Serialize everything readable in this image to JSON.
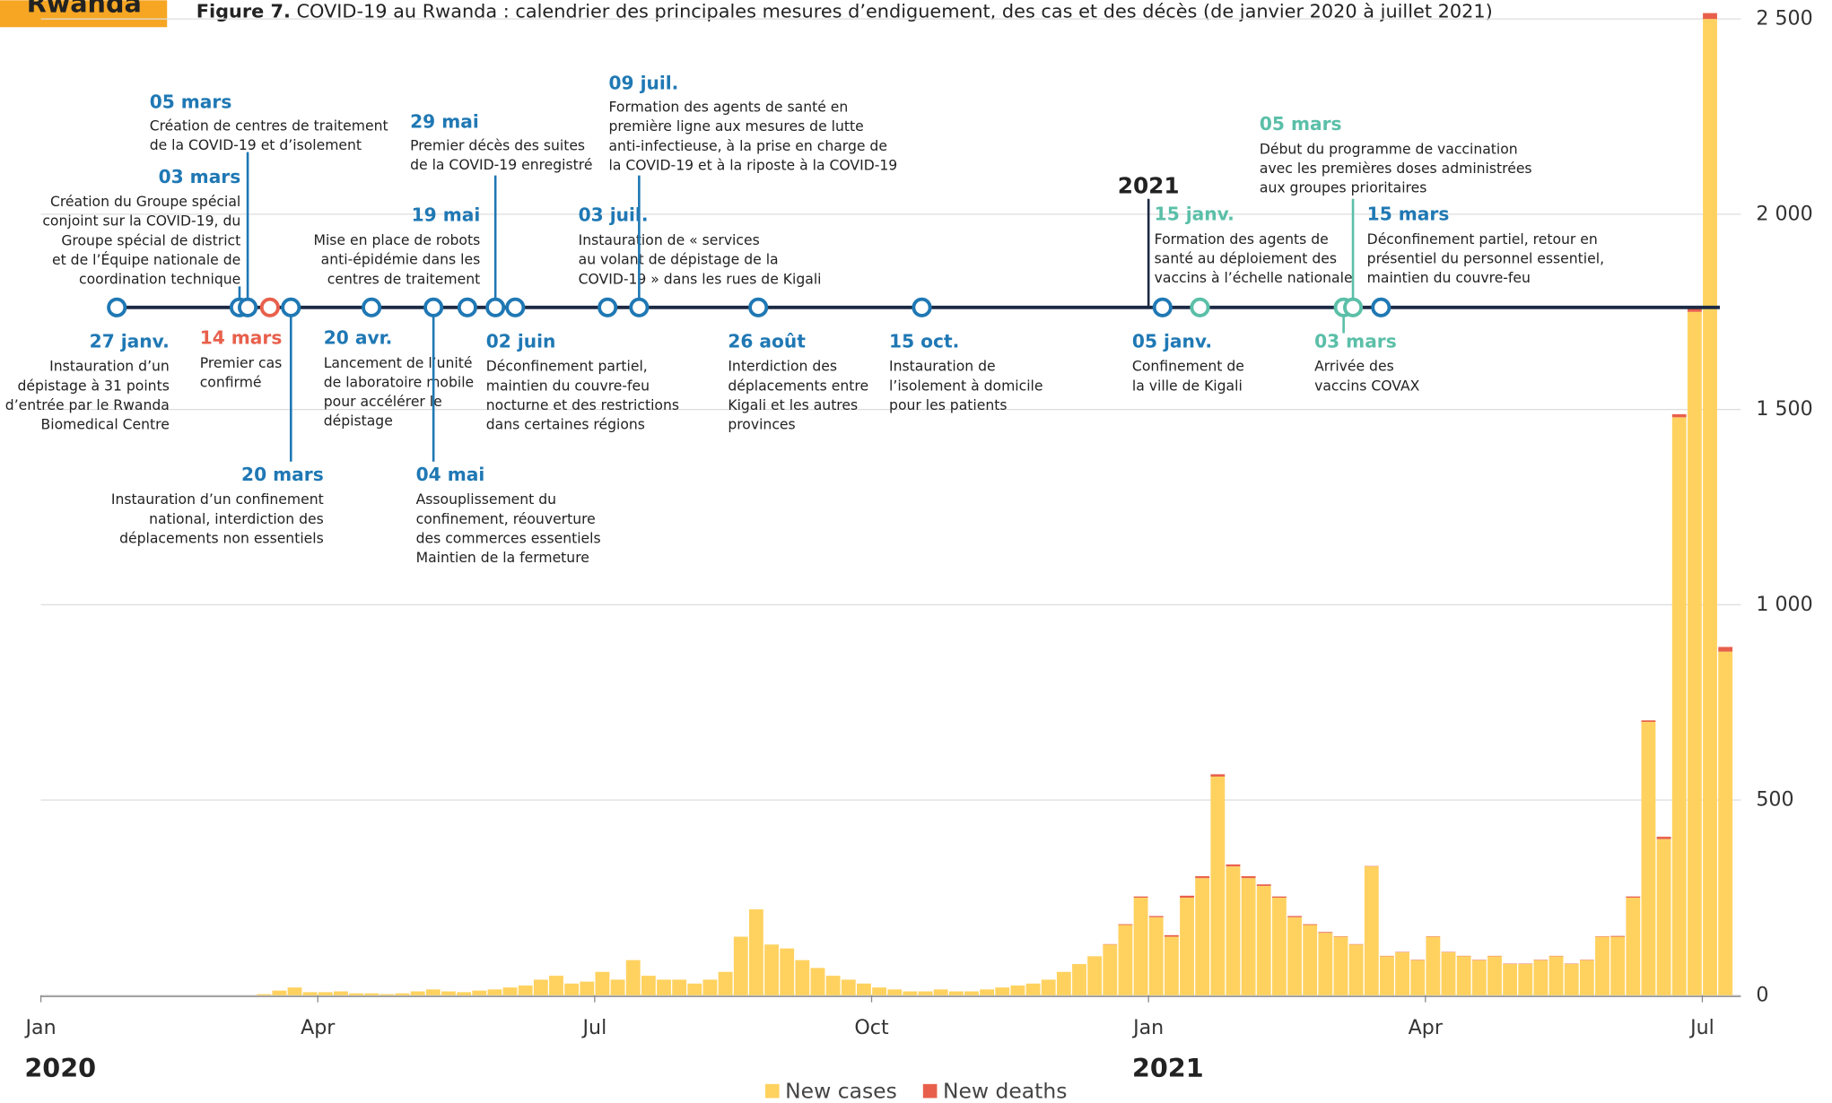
{
  "chart_data": {
    "type": "bar",
    "badge": "Rwanda",
    "figure_label": "Figure 7.",
    "title": "COVID-19 au Rwanda : calendrier des principales mesures d’endiguement, des cas et des décès (de janvier 2020 à juillet 2021)",
    "years": [
      "2020",
      "2021"
    ],
    "timeline_year": "2021",
    "categories": [
      "Jan",
      null,
      null,
      null,
      null,
      null,
      null,
      null,
      null,
      null,
      null,
      null,
      null,
      null,
      null,
      null,
      null,
      null,
      "Apr",
      null,
      null,
      null,
      null,
      null,
      null,
      null,
      null,
      null,
      null,
      null,
      null,
      null,
      null,
      null,
      null,
      null,
      "Jul",
      null,
      null,
      null,
      null,
      null,
      null,
      null,
      null,
      null,
      null,
      null,
      null,
      null,
      null,
      null,
      null,
      null,
      "Oct",
      null,
      null,
      null,
      null,
      null,
      null,
      null,
      null,
      null,
      null,
      null,
      null,
      null,
      null,
      null,
      null,
      null,
      "Jan",
      null,
      null,
      null,
      null,
      null,
      null,
      null,
      null,
      null,
      null,
      null,
      null,
      null,
      null,
      null,
      null,
      null,
      "Apr",
      null,
      null,
      null,
      null,
      null,
      null,
      null,
      null,
      null,
      null,
      null,
      null,
      null,
      null,
      null,
      null,
      null,
      "Jul",
      null
    ],
    "series": [
      {
        "name": "New cases",
        "color": "#ffd260",
        "values": [
          0,
          0,
          0,
          0,
          0,
          0,
          0,
          0,
          0,
          0,
          0,
          0,
          0,
          0,
          3,
          12,
          20,
          8,
          8,
          10,
          5,
          5,
          3,
          5,
          10,
          15,
          10,
          8,
          12,
          15,
          20,
          25,
          40,
          50,
          30,
          35,
          60,
          40,
          90,
          50,
          40,
          40,
          30,
          40,
          60,
          150,
          220,
          130,
          120,
          90,
          70,
          50,
          40,
          30,
          20,
          15,
          10,
          10,
          15,
          10,
          10,
          15,
          20,
          25,
          30,
          40,
          60,
          80,
          100,
          130,
          180,
          250,
          200,
          150,
          250,
          300,
          560,
          330,
          300,
          280,
          250,
          200,
          180,
          160,
          150,
          130,
          330,
          100,
          110,
          90,
          150,
          110,
          100,
          90,
          100,
          80,
          80,
          90,
          100,
          80,
          90,
          150,
          150,
          250,
          700,
          400,
          1480,
          1750,
          2500,
          880
        ]
      },
      {
        "name": "New deaths",
        "color": "#e8604c",
        "values": [
          0,
          0,
          0,
          0,
          0,
          0,
          0,
          0,
          0,
          0,
          0,
          0,
          0,
          0,
          0,
          0,
          0,
          0,
          0,
          0,
          0,
          0,
          0,
          0,
          0,
          0,
          0,
          0,
          0,
          0,
          0,
          0,
          0,
          0,
          0,
          0,
          0,
          0,
          0,
          0,
          0,
          0,
          0,
          0,
          0,
          0,
          0,
          0,
          0,
          0,
          0,
          0,
          0,
          0,
          0,
          0,
          0,
          0,
          0,
          0,
          0,
          0,
          0,
          0,
          0,
          0,
          0,
          0,
          0,
          1,
          2,
          3,
          3,
          4,
          5,
          5,
          6,
          5,
          5,
          4,
          3,
          3,
          2,
          2,
          1,
          1,
          1,
          1,
          1,
          1,
          1,
          1,
          1,
          1,
          1,
          1,
          1,
          1,
          1,
          1,
          1,
          1,
          2,
          3,
          4,
          6,
          8,
          10,
          15,
          12
        ]
      }
    ],
    "ylim": [
      0,
      2500
    ],
    "yticks": [
      0,
      500,
      {
        "value": 1000,
        "label": "1 000"
      },
      {
        "value": 1500,
        "label": "1 500"
      },
      {
        "value": 2000,
        "label": "2 000"
      },
      {
        "value": 2500,
        "label": "2 500"
      }
    ],
    "grid": true,
    "events": [
      {
        "date": "27 janv.",
        "color": "#1f78b4",
        "text": [
          "Instauration d’un",
          "dépistage à 31 points",
          "d’entrée par le Rwanda",
          "Biomedical Centre"
        ]
      },
      {
        "date": "03 mars",
        "color": "#1f78b4",
        "text": [
          "Création du Groupe spécial",
          "conjoint sur la COVID-19, du",
          "Groupe spécial de district",
          "et de l’Équipe nationale de",
          "coordination technique"
        ]
      },
      {
        "date": "05 mars",
        "color": "#1f78b4",
        "text": [
          "Création de centres de traitement",
          "de la COVID-19 et d’isolement"
        ]
      },
      {
        "date": "14 mars",
        "color": "#e8604c",
        "text": [
          "Premier cas",
          "confirmé"
        ]
      },
      {
        "date": "20 mars",
        "color": "#1f78b4",
        "text": [
          "Instauration d’un confinement",
          "national, interdiction des",
          "déplacements non essentiels"
        ]
      },
      {
        "date": "20 avr.",
        "color": "#1f78b4",
        "text": [
          "Lancement de l’unité",
          "de laboratoire mobile",
          "pour accélérer le",
          "dépistage"
        ]
      },
      {
        "date": "04 mai",
        "color": "#1f78b4",
        "text": [
          "Assouplissement du",
          "confinement, réouverture",
          "des commerces essentiels",
          "Maintien de la fermeture"
        ]
      },
      {
        "date": "19 mai",
        "color": "#1f78b4",
        "text": [
          "Mise en place de robots",
          "anti-épidémie dans les",
          "centres de traitement"
        ]
      },
      {
        "date": "29 mai",
        "color": "#1f78b4",
        "text": [
          "Premier décès des suites",
          "de la COVID-19 enregistré"
        ]
      },
      {
        "date": "02 juin",
        "color": "#1f78b4",
        "text": [
          "Déconfinement partiel,",
          "maintien du couvre-feu",
          "nocturne et des restrictions",
          "dans certaines régions"
        ]
      },
      {
        "date": "03 juil.",
        "color": "#1f78b4",
        "text": [
          "Instauration de « services",
          "au volant de dépistage de la",
          "COVID-19 » dans les rues de Kigali"
        ]
      },
      {
        "date": "09 juil.",
        "color": "#1f78b4",
        "text": [
          "Formation des agents de santé en",
          "première ligne aux mesures de lutte",
          "anti-infectieuse, à la prise en charge de",
          "la COVID-19 et à la riposte à la COVID-19"
        ]
      },
      {
        "date": "26 août",
        "color": "#1f78b4",
        "text": [
          "Interdiction des",
          "déplacements entre",
          "Kigali et les autres",
          "provinces"
        ]
      },
      {
        "date": "15 oct.",
        "color": "#1f78b4",
        "text": [
          "Instauration de",
          "l’isolement à domicile",
          "pour les patients"
        ]
      },
      {
        "date": "05 janv.",
        "color": "#1f78b4",
        "text": [
          "Confinement de",
          "la ville de Kigali"
        ]
      },
      {
        "date": "15 janv.",
        "color": "#5bbfa8",
        "text": [
          "Formation des agents de",
          "santé au déploiement des",
          "vaccins à l’échelle nationale"
        ]
      },
      {
        "date": "03 mars",
        "color": "#5bbfa8",
        "text": [
          "Arrivée des",
          "vaccins COVAX"
        ]
      },
      {
        "date": "05 mars",
        "color": "#5bbfa8",
        "text": [
          "Début du programme de vaccination",
          "avec les premières doses administrées",
          "aux groupes prioritaires"
        ]
      },
      {
        "date": "15 mars",
        "color": "#1f78b4",
        "text": [
          "Déconfinement partiel, retour en",
          "présentiel du personnel essentiel,",
          "maintien du couvre-feu"
        ]
      }
    ]
  }
}
